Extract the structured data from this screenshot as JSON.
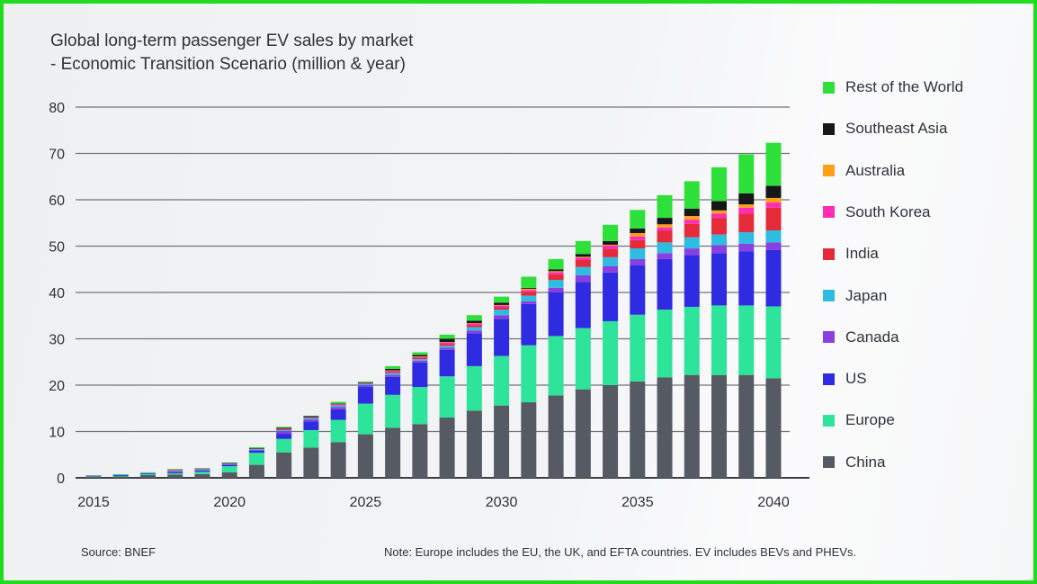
{
  "chart_data": {
    "type": "bar",
    "stacked": true,
    "title": "Global long-term passenger EV sales by market",
    "subtitle": "- Economic Transition Scenario (million & year)",
    "xlabel": "",
    "ylabel": "",
    "ylim": [
      0,
      80
    ],
    "yticks": [
      0,
      10,
      20,
      30,
      40,
      50,
      60,
      70,
      80
    ],
    "xticks": [
      "2015",
      "2020",
      "2025",
      "2030",
      "2035",
      "2040"
    ],
    "grid": true,
    "legend_position": "right",
    "categories": [
      "2015",
      "2016",
      "2017",
      "2018",
      "2019",
      "2020",
      "2021",
      "2022",
      "2023",
      "2024",
      "2025",
      "2026",
      "2027",
      "2028",
      "2029",
      "2030",
      "2031",
      "2032",
      "2033",
      "2034",
      "2035",
      "2036",
      "2037",
      "2038",
      "2039",
      "2040"
    ],
    "series": [
      {
        "name": "China",
        "color": "#555a63",
        "values": [
          0.3,
          0.3,
          0.6,
          0.7,
          0.8,
          1.2,
          2.8,
          5.5,
          6.5,
          7.7,
          9.4,
          10.8,
          11.6,
          13.0,
          14.5,
          15.6,
          16.3,
          17.8,
          19.1,
          20.0,
          20.8,
          21.7,
          22.2,
          22.2,
          22.2,
          21.5
        ]
      },
      {
        "name": "Europe",
        "color": "#2ee39a",
        "values": [
          0.1,
          0.1,
          0.2,
          0.3,
          0.5,
          1.3,
          2.6,
          2.9,
          3.8,
          4.8,
          6.6,
          7.1,
          8.0,
          8.9,
          9.6,
          10.7,
          12.3,
          12.8,
          13.2,
          13.8,
          14.4,
          14.6,
          14.7,
          15.0,
          15.0,
          15.5
        ]
      },
      {
        "name": "US",
        "color": "#2f2be0",
        "values": [
          0.1,
          0.2,
          0.2,
          0.3,
          0.3,
          0.3,
          0.5,
          1.1,
          1.9,
          2.3,
          3.6,
          3.9,
          5.3,
          5.7,
          7.1,
          8.0,
          8.9,
          9.4,
          10.0,
          10.5,
          10.7,
          10.9,
          11.2,
          11.3,
          11.7,
          12.2
        ]
      },
      {
        "name": "Canada",
        "color": "#8a3fe0",
        "values": [
          0.0,
          0.0,
          0.0,
          0.1,
          0.1,
          0.1,
          0.1,
          0.6,
          0.4,
          0.5,
          0.4,
          0.4,
          0.4,
          0.5,
          0.6,
          0.8,
          0.6,
          1.0,
          1.4,
          1.4,
          1.3,
          1.3,
          1.4,
          1.7,
          1.6,
          1.6
        ]
      },
      {
        "name": "Japan",
        "color": "#2ebde0",
        "values": [
          0.0,
          0.1,
          0.1,
          0.1,
          0.1,
          0.1,
          0.2,
          0.2,
          0.3,
          0.3,
          0.3,
          0.4,
          0.3,
          0.4,
          0.7,
          1.2,
          1.2,
          1.7,
          1.8,
          1.9,
          2.3,
          2.3,
          2.4,
          2.3,
          2.5,
          2.6
        ]
      },
      {
        "name": "India",
        "color": "#e52b3a",
        "values": [
          0.0,
          0.0,
          0.0,
          0.1,
          0.0,
          0.0,
          0.0,
          0.2,
          0.1,
          0.1,
          0.1,
          0.2,
          0.3,
          0.4,
          0.4,
          0.5,
          0.8,
          1.2,
          1.5,
          1.8,
          1.8,
          2.5,
          2.9,
          3.6,
          4.0,
          4.9
        ]
      },
      {
        "name": "South Korea",
        "color": "#ff2cb4",
        "values": [
          0.0,
          0.0,
          0.0,
          0.1,
          0.1,
          0.1,
          0.1,
          0.1,
          0.1,
          0.2,
          0.1,
          0.3,
          0.2,
          0.3,
          0.4,
          0.4,
          0.4,
          0.5,
          0.5,
          0.7,
          0.8,
          0.7,
          0.9,
          0.9,
          1.3,
          1.1
        ]
      },
      {
        "name": "Australia",
        "color": "#ff9f1c",
        "values": [
          0.0,
          0.0,
          0.0,
          0.0,
          0.0,
          0.0,
          0.0,
          0.0,
          0.0,
          0.0,
          0.0,
          0.1,
          0.1,
          0.1,
          0.1,
          0.1,
          0.3,
          0.2,
          0.2,
          0.2,
          0.7,
          0.7,
          0.8,
          0.7,
          0.7,
          1.0
        ]
      },
      {
        "name": "Southeast Asia",
        "color": "#151719",
        "values": [
          0.0,
          0.0,
          0.0,
          0.1,
          0.1,
          0.1,
          0.1,
          0.2,
          0.2,
          0.1,
          0.1,
          0.3,
          0.3,
          0.7,
          0.5,
          0.5,
          0.2,
          0.4,
          0.6,
          0.8,
          1.0,
          1.4,
          1.6,
          2.0,
          2.4,
          2.6
        ]
      },
      {
        "name": "Rest of the World",
        "color": "#2ee03a",
        "values": [
          0.0,
          0.1,
          0.1,
          0.1,
          0.1,
          0.1,
          0.2,
          0.2,
          0.1,
          0.4,
          0.2,
          0.6,
          0.6,
          0.9,
          1.2,
          1.3,
          2.4,
          2.2,
          2.8,
          3.5,
          4.0,
          4.9,
          5.9,
          7.3,
          8.4,
          9.3
        ]
      }
    ],
    "source": "Source: BNEF",
    "note": "Note: Europe includes the EU, the UK, and EFTA countries. EV includes BEVs and PHEVs."
  }
}
